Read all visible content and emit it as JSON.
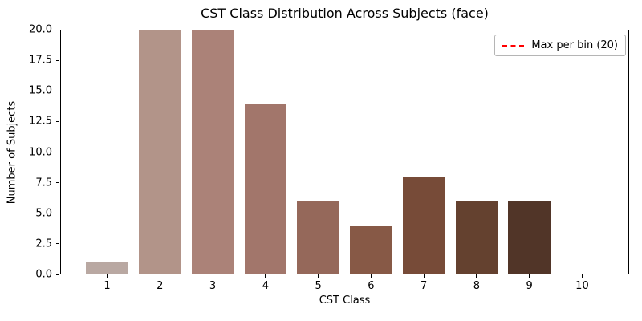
{
  "chart_data": {
    "type": "bar",
    "title": "CST Class Distribution Across Subjects (face)",
    "xlabel": "CST Class",
    "ylabel": "Number of Subjects",
    "categories": [
      "1",
      "2",
      "3",
      "4",
      "5",
      "6",
      "7",
      "8",
      "9",
      "10"
    ],
    "values": [
      1,
      20,
      20,
      14,
      6,
      4,
      8,
      6,
      6,
      0
    ],
    "bar_colors": [
      "#b9a8a2",
      "#b29489",
      "#ab8278",
      "#a2766b",
      "#95685a",
      "#875946",
      "#774b38",
      "#64412f",
      "#513528",
      "#3e2a20"
    ],
    "ylim": [
      0,
      20
    ],
    "xlim": [
      0.11,
      10.89
    ],
    "bar_width": 0.8,
    "yticks": [
      0,
      2.5,
      5,
      7.5,
      10,
      12.5,
      15,
      17.5,
      20
    ],
    "ytick_labels": [
      "0.0",
      "2.5",
      "5.0",
      "7.5",
      "10.0",
      "12.5",
      "15.0",
      "17.5",
      "20.0"
    ],
    "grid": false,
    "legend_position": "upper right",
    "legend": {
      "entries": [
        {
          "label": "Max per bin (20)",
          "color": "#ff0000",
          "style": "dashed"
        }
      ]
    },
    "max_line": {
      "value": 20,
      "color": "#ff0000",
      "style": "dashed"
    },
    "axis_color": "#000000",
    "background_color": "#ffffff"
  }
}
